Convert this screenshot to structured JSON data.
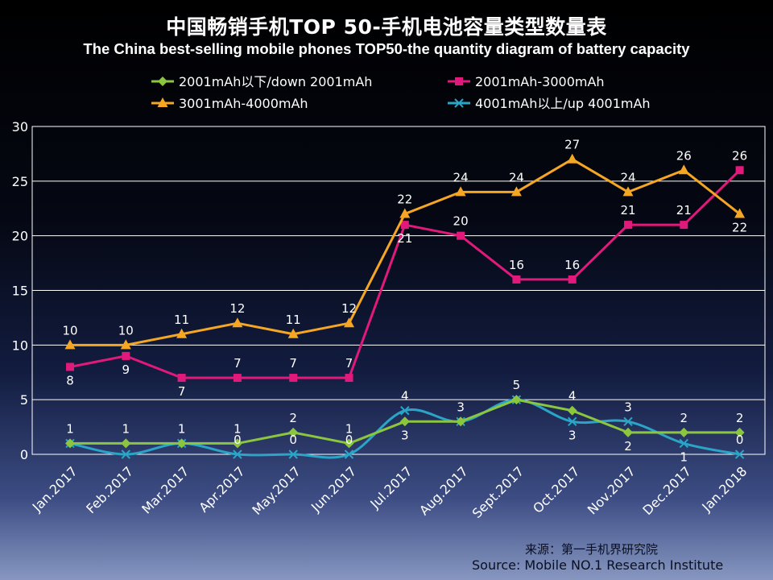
{
  "chart_data": {
    "type": "line",
    "title": "中国畅销手机TOP 50-手机电池容量类型数量表",
    "subtitle": "The China best-selling mobile phones TOP50-the quantity diagram of battery capacity",
    "categories": [
      "Jan.2017",
      "Feb.2017",
      "Mar.2017",
      "Apr.2017",
      "May.2017",
      "Jun.2017",
      "Jul.2017",
      "Aug.2017",
      "Sept.2017",
      "Oct.2017",
      "Nov.2017",
      "Dec.2017",
      "Jan.2018"
    ],
    "y_ticks": [
      "0",
      "5",
      "10",
      "15",
      "20",
      "25",
      "30"
    ],
    "ylim": [
      0,
      30
    ],
    "grid": true,
    "legend_position": "top",
    "series": [
      {
        "name": "2001mAh以下/down 2001mAh",
        "color": "#8cc63f",
        "marker": "diamond",
        "curved": false,
        "values": [
          1,
          1,
          1,
          1,
          2,
          1,
          3,
          3,
          5,
          4,
          2,
          2,
          2
        ],
        "labels": [
          "1",
          "1",
          "1",
          "1",
          "2",
          "1",
          "3",
          "3",
          "5",
          "4",
          "2",
          "2",
          "2"
        ],
        "label_side": [
          "above",
          "above",
          "above",
          "above",
          "above",
          "above",
          "below",
          "above",
          "above",
          "above",
          "below",
          "above",
          "above"
        ]
      },
      {
        "name": "2001mAh-3000mAh",
        "color": "#e0197a",
        "marker": "square",
        "curved": false,
        "values": [
          8,
          9,
          7,
          7,
          7,
          7,
          21,
          20,
          16,
          16,
          21,
          21,
          26
        ],
        "labels": [
          "8",
          "9",
          "7",
          "7",
          "7",
          "7",
          "21",
          "20",
          "16",
          "16",
          "21",
          "21",
          "26"
        ],
        "label_side": [
          "below",
          "below",
          "below",
          "above",
          "above",
          "above",
          "below",
          "above",
          "above",
          "above",
          "above",
          "above",
          "above"
        ]
      },
      {
        "name": "3001mAh-4000mAh",
        "color": "#f5a623",
        "marker": "triangle",
        "curved": false,
        "values": [
          10,
          10,
          11,
          12,
          11,
          12,
          22,
          24,
          24,
          27,
          24,
          26,
          22
        ],
        "labels": [
          "10",
          "10",
          "11",
          "12",
          "11",
          "12",
          "22",
          "24",
          "24",
          "27",
          "24",
          "26",
          "22"
        ],
        "label_side": [
          "above",
          "above",
          "above",
          "above",
          "above",
          "above",
          "above",
          "above",
          "above",
          "above",
          "above",
          "above",
          "below"
        ]
      },
      {
        "name": "4001mAh以上/up 4001mAh",
        "color": "#2aa5c7",
        "marker": "x",
        "curved": true,
        "values": [
          1,
          0,
          1,
          0,
          0,
          0,
          4,
          3,
          5,
          3,
          3,
          1,
          0
        ],
        "labels": [
          "",
          "",
          "",
          "0",
          "0",
          "0",
          "4",
          "",
          "",
          "3",
          "3",
          "1",
          "0"
        ],
        "label_side": [
          "above",
          "above",
          "above",
          "above",
          "above",
          "above",
          "above",
          "above",
          "above",
          "below",
          "above",
          "below",
          "above"
        ]
      }
    ]
  },
  "source": {
    "cn": "来源：第一手机界研究院",
    "en": "Source: Mobile NO.1 Research Institute"
  }
}
